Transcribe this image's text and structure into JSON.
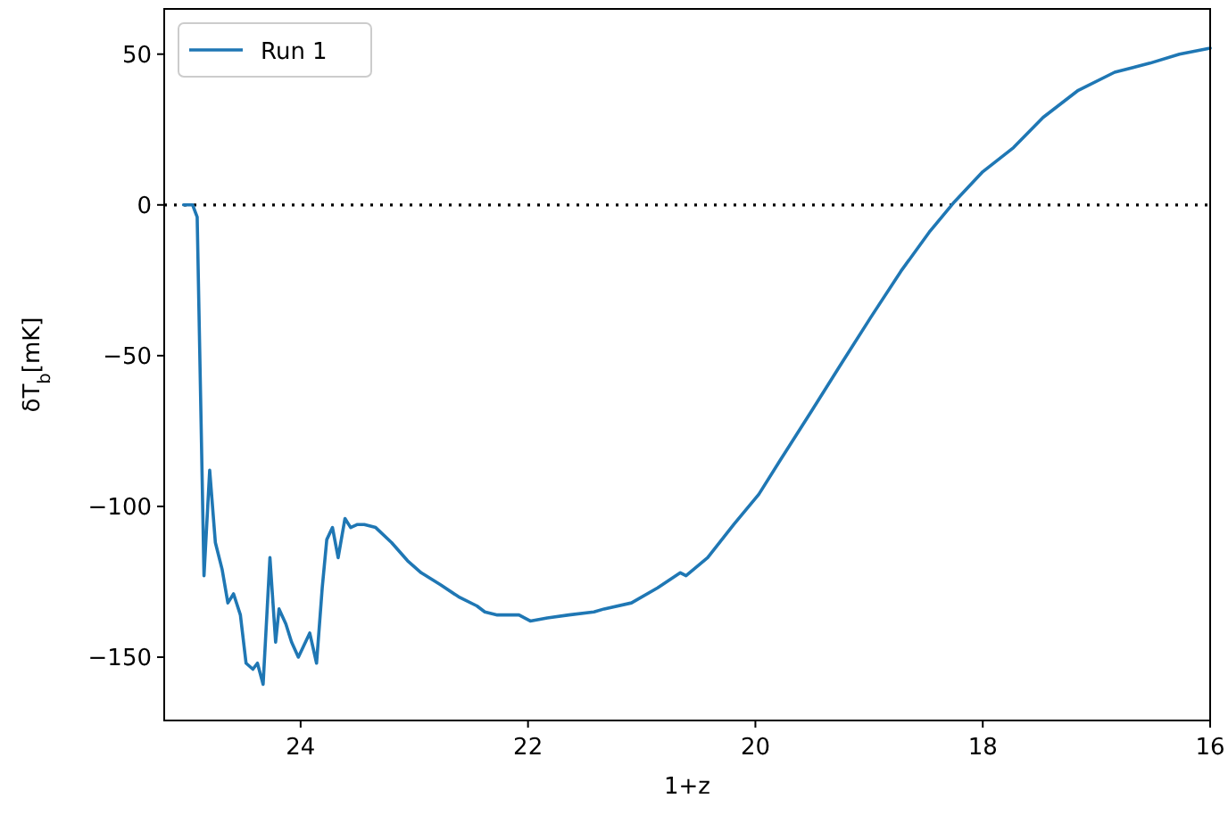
{
  "chart_data": {
    "type": "line",
    "xlabel": "1+z",
    "ylabel": "δT$_{b}$[mK]",
    "xlim": [
      25.2,
      16
    ],
    "ylim": [
      -171,
      65
    ],
    "xticks": [
      24,
      22,
      20,
      18,
      16
    ],
    "yticks": [
      50,
      0,
      -50,
      -100,
      -150
    ],
    "legend": "top left",
    "grid": false,
    "line_style": "solid",
    "marker": "none",
    "ref_lines": [
      {
        "axis": "y",
        "value": 0,
        "color": "#000000",
        "line_style": "dotted"
      }
    ],
    "series": [
      {
        "name": "Run 1",
        "color": "#1f77b4",
        "x": [
          25.03,
          24.95,
          24.91,
          24.85,
          24.8,
          24.75,
          24.69,
          24.64,
          24.59,
          24.53,
          24.48,
          24.42,
          24.38,
          24.33,
          24.27,
          24.22,
          24.19,
          24.13,
          24.08,
          24.02,
          23.97,
          23.92,
          23.86,
          23.81,
          23.77,
          23.72,
          23.67,
          23.61,
          23.56,
          23.5,
          23.44,
          23.34,
          23.2,
          23.06,
          22.94,
          22.77,
          22.61,
          22.45,
          22.38,
          22.27,
          22.08,
          21.98,
          21.83,
          21.64,
          21.42,
          21.33,
          21.09,
          20.86,
          20.66,
          20.61,
          20.42,
          20.19,
          19.97,
          19.77,
          19.5,
          19.25,
          18.98,
          18.72,
          18.47,
          18.25,
          18,
          17.73,
          17.47,
          17.16,
          16.84,
          16.53,
          16.27,
          16
        ],
        "values": [
          0,
          0,
          -4,
          -123,
          -88,
          -112,
          -121,
          -132,
          -129,
          -136,
          -152,
          -154,
          -152,
          -159,
          -117,
          -145,
          -134,
          -139,
          -145,
          -150,
          -146,
          -142,
          -152,
          -127,
          -111,
          -107,
          -117,
          -104,
          -107,
          -106,
          -106,
          -107,
          -112,
          -118,
          -122,
          -126,
          -130,
          -133,
          -135,
          -136,
          -136,
          -138,
          -137,
          -136,
          -135,
          -134,
          -132,
          -127,
          -122,
          -123,
          -117,
          -106,
          -96,
          -84,
          -68,
          -53,
          -37,
          -22,
          -9,
          1,
          11,
          19,
          29,
          38,
          44,
          47,
          50,
          52
        ]
      }
    ]
  }
}
